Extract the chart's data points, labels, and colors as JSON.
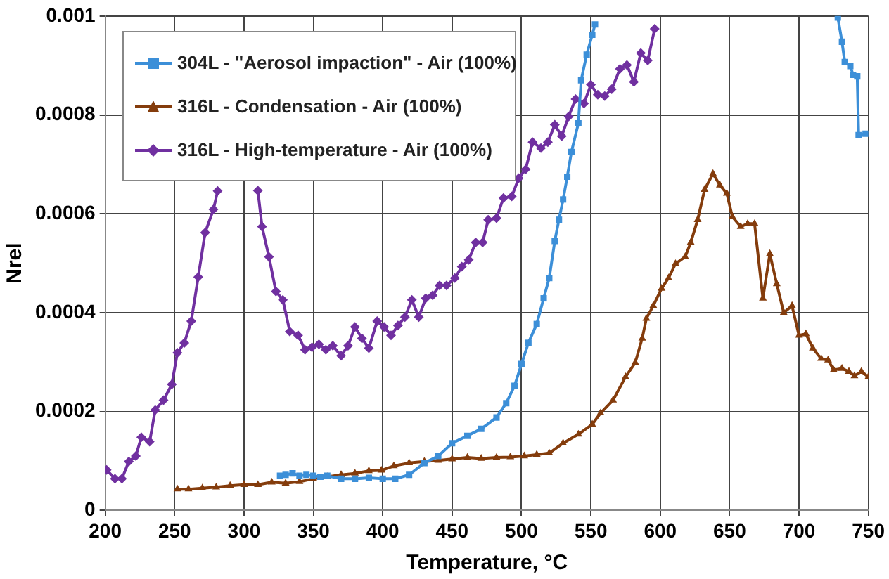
{
  "chart_data": {
    "type": "line",
    "xlabel": "Temperature, °C",
    "ylabel": "Nrel",
    "xlim": [
      200,
      750
    ],
    "xticks": [
      200,
      250,
      300,
      350,
      400,
      450,
      500,
      550,
      600,
      650,
      700,
      750
    ],
    "ylim": [
      0,
      0.001
    ],
    "yticks": [
      0,
      0.0002,
      0.0004,
      0.0006,
      0.0008,
      0.001
    ],
    "grid": true,
    "legend": "top left",
    "line_style": "solid",
    "series": [
      {
        "name": "304L - \"Aerosol impaction\" - Air (100%)",
        "color": "#3c8fd8",
        "marker": "square",
        "x": [
          326,
          330,
          335,
          340,
          345,
          350,
          355,
          360,
          370,
          380,
          390,
          400,
          409,
          419,
          430,
          440,
          450,
          461,
          471,
          482,
          489,
          495,
          500,
          505,
          511,
          516,
          520,
          524,
          527,
          530,
          533,
          536,
          541,
          543,
          547,
          551,
          553,
          640,
          728,
          731,
          733,
          737,
          739,
          742,
          743,
          748
        ],
        "values": [
          7e-05,
          7.2e-05,
          7.5e-05,
          7e-05,
          7.2e-05,
          7e-05,
          6.8e-05,
          7e-05,
          6.4e-05,
          6.4e-05,
          6.6e-05,
          6.4e-05,
          6.4e-05,
          7.2e-05,
          9.6e-05,
          0.00011,
          0.000136,
          0.000151,
          0.000165,
          0.000188,
          0.000217,
          0.000252,
          0.000296,
          0.000339,
          0.000377,
          0.000429,
          0.00047,
          0.000545,
          0.000588,
          0.000629,
          0.000675,
          0.000725,
          0.000783,
          0.00087,
          0.000922,
          0.000962,
          0.000983,
          null,
          0.000997,
          0.000948,
          0.000907,
          0.000899,
          0.000881,
          0.000878,
          0.000759,
          0.000762
        ]
      },
      {
        "name": "316L - Condensation - Air (100%)",
        "color": "#843c0c",
        "marker": "triangle",
        "x": [
          252,
          260,
          270,
          280,
          290,
          300,
          310,
          320,
          330,
          340,
          350,
          360,
          370,
          380,
          390,
          399,
          408,
          419,
          430,
          440,
          450,
          461,
          471,
          482,
          492,
          502,
          511,
          520,
          530,
          541,
          551,
          557,
          566,
          575,
          582,
          587,
          590,
          595,
          601,
          606,
          611,
          618,
          622,
          627,
          632,
          638,
          643,
          648,
          652,
          658,
          663,
          668,
          674,
          679,
          684,
          689,
          695,
          700,
          705,
          710,
          716,
          721,
          725,
          731,
          736,
          740,
          745,
          750
        ],
        "values": [
          4.3e-05,
          4.3e-05,
          4.5e-05,
          4.7e-05,
          5e-05,
          5.2e-05,
          5.2e-05,
          5.7e-05,
          5.5e-05,
          5.8e-05,
          6.4e-05,
          6.8e-05,
          7.2e-05,
          7.5e-05,
          8e-05,
          8.1e-05,
          9e-05,
          9.6e-05,
          9.9e-05,
          0.000101,
          0.000104,
          0.000107,
          0.000105,
          0.000107,
          0.000108,
          0.00011,
          0.000113,
          0.000116,
          0.000136,
          0.000154,
          0.000174,
          0.000197,
          0.000223,
          0.00027,
          0.000299,
          0.000348,
          0.000388,
          0.000414,
          0.000449,
          0.00047,
          0.000499,
          0.000513,
          0.000542,
          0.000588,
          0.000649,
          0.000681,
          0.000658,
          0.000641,
          0.000594,
          0.000574,
          0.00058,
          0.00058,
          0.000429,
          0.000519,
          0.000458,
          0.0004,
          0.000414,
          0.000354,
          0.000357,
          0.000328,
          0.000307,
          0.000304,
          0.000284,
          0.000287,
          0.000281,
          0.000272,
          0.000281,
          0.00027
        ]
      },
      {
        "name": "316L - High-temperature - Air (100%)",
        "color": "#7030a0",
        "marker": "diamond",
        "x": [
          201,
          207,
          212,
          217,
          222,
          226,
          232,
          236,
          242,
          248,
          252,
          257,
          262,
          267,
          272,
          278,
          281,
          295,
          310,
          313,
          318,
          323,
          328,
          333,
          339,
          344,
          349,
          354,
          359,
          364,
          370,
          375,
          380,
          385,
          390,
          396,
          401,
          406,
          411,
          416,
          421,
          426,
          431,
          436,
          441,
          446,
          452,
          457,
          462,
          467,
          472,
          476,
          482,
          487,
          493,
          498,
          503,
          508,
          514,
          519,
          524,
          529,
          534,
          539,
          545,
          550,
          555,
          560,
          565,
          571,
          576,
          581,
          586,
          591,
          596
        ],
        "values": [
          8.2e-05,
          6.4e-05,
          6.4e-05,
          9.9e-05,
          0.00011,
          0.000148,
          0.000139,
          0.000203,
          0.000223,
          0.000255,
          0.000319,
          0.000339,
          0.000383,
          0.000472,
          0.000562,
          0.000609,
          0.000646,
          null,
          0.000647,
          0.000574,
          0.000513,
          0.000443,
          0.000426,
          0.000362,
          0.000354,
          0.000325,
          0.00033,
          0.000336,
          0.000325,
          0.000333,
          0.000313,
          0.000333,
          0.000371,
          0.000348,
          0.000328,
          0.000383,
          0.000371,
          0.000354,
          0.000374,
          0.000391,
          0.000426,
          0.000391,
          0.000429,
          0.000435,
          0.000455,
          0.000455,
          0.00047,
          0.000493,
          0.000507,
          0.000542,
          0.000542,
          0.000588,
          0.000591,
          0.000632,
          0.000635,
          0.000672,
          0.00069,
          0.000745,
          0.000733,
          0.000745,
          0.00078,
          0.000757,
          0.000797,
          0.000832,
          0.000823,
          0.000861,
          0.000841,
          0.000838,
          0.000852,
          0.000893,
          0.000901,
          0.000867,
          0.000925,
          0.00091,
          0.000974
        ]
      }
    ]
  }
}
